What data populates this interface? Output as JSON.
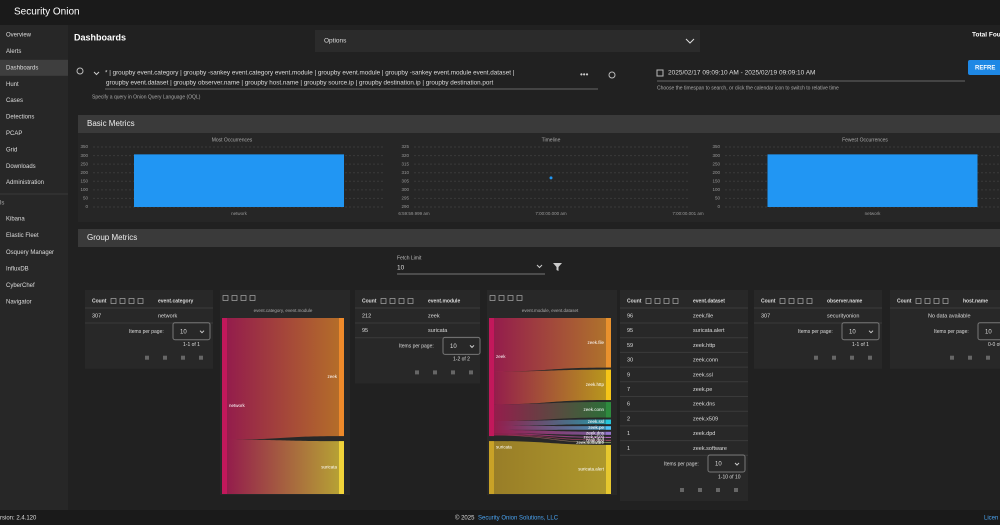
{
  "header": {
    "logo": "Security Onion"
  },
  "nav": {
    "items": [
      "Overview",
      "Alerts",
      "Dashboards",
      "Hunt",
      "Cases",
      "Detections",
      "PCAP",
      "Grid",
      "Downloads",
      "Administration"
    ],
    "section": "ls",
    "tools": [
      "Kibana",
      "Elastic Fleet",
      "Osquery Manager",
      "InfluxDB",
      "CyberChef",
      "Navigator"
    ]
  },
  "page": {
    "title": "Dashboards",
    "options": "Options",
    "total": "Total Fou"
  },
  "query": {
    "lines": [
      "* | groupby event.category | groupby -sankey event.category event.module | groupby event.module | groupby -sankey event.module event.dataset |",
      "groupby event.dataset | groupby observer.name | groupby host.name | groupby source.ip | groupby destination.ip | groupby destination.port"
    ],
    "hint": "Specify a query in Onion Query Language (OQL)"
  },
  "timespan": {
    "range": "2025/02/17 09:09:10 AM - 2025/02/19 09:09:10 AM",
    "hint": "Choose the timespan to search, or click the calendar icon to switch to relative time",
    "button": "REFRE"
  },
  "basic_metrics": {
    "title": "Basic Metrics",
    "charts": [
      {
        "type": "bar",
        "title": "Most Occurrences",
        "categories": [
          "network"
        ],
        "values": [
          307
        ],
        "color": "#2196f3",
        "ylim": [
          0,
          350
        ],
        "yticks": [
          0,
          50,
          100,
          150,
          200,
          250,
          300,
          350
        ],
        "grid": true
      },
      {
        "type": "scatter",
        "title": "Timeline",
        "categories": [
          "6:59:59.999 am",
          "7:00:00.000 am",
          "7:00:00.001 am"
        ],
        "values": [
          null,
          307,
          null
        ],
        "color": "#2196f3",
        "ylim": [
          290,
          325
        ],
        "yticks": [
          290,
          295,
          300,
          305,
          310,
          315,
          320,
          325
        ],
        "grid": true
      },
      {
        "type": "bar",
        "title": "Fewest Occurrences",
        "categories": [
          "network"
        ],
        "values": [
          307
        ],
        "color": "#2196f3",
        "ylim": [
          0,
          350
        ],
        "yticks": [
          0,
          50,
          100,
          150,
          200,
          250,
          300,
          350
        ],
        "grid": true
      }
    ]
  },
  "group_metrics": {
    "title": "Group Metrics",
    "fetch_label": "Fetch Limit",
    "fetch_value": 10,
    "tables": [
      {
        "count_label": "Count",
        "field": "event.category",
        "rows": [
          [
            307,
            "network"
          ]
        ],
        "items_label": "Items per page:",
        "per_page": 10,
        "range": "1-1 of 1"
      },
      {
        "count_label": "Count",
        "field": "event.module",
        "rows": [
          [
            212,
            "zeek"
          ],
          [
            95,
            "suricata"
          ]
        ],
        "items_label": "Items per page:",
        "per_page": 10,
        "range": "1-2 of 2"
      },
      {
        "count_label": "Count",
        "field": "event.dataset",
        "rows": [
          [
            96,
            "zeek.file"
          ],
          [
            95,
            "suricata.alert"
          ],
          [
            59,
            "zeek.http"
          ],
          [
            30,
            "zeek.conn"
          ],
          [
            9,
            "zeek.ssl"
          ],
          [
            7,
            "zeek.pe"
          ],
          [
            6,
            "zeek.dns"
          ],
          [
            2,
            "zeek.x509"
          ],
          [
            1,
            "zeek.dpd"
          ],
          [
            1,
            "zeek.software"
          ]
        ],
        "items_label": "Items per page:",
        "per_page": 10,
        "range": "1-10 of 10"
      },
      {
        "count_label": "Count",
        "field": "observer.name",
        "rows": [
          [
            307,
            "securityonion"
          ]
        ],
        "items_label": "Items per page:",
        "per_page": 10,
        "range": "1-1 of 1"
      },
      {
        "count_label": "Count",
        "field": "host.name",
        "rows": [],
        "empty": "No data available",
        "items_label": "Items per page:",
        "per_page": 10,
        "range": "0-0 of"
      }
    ],
    "sankeys": [
      {
        "title": "event.category, event.module",
        "source_colors": [
          "#c2185b"
        ],
        "target_colors": [
          "#ef8a2a",
          "#f2d43a"
        ]
      },
      {
        "title": "event.module, event.dataset",
        "source_colors": [
          "#c2185b",
          "#c9a227"
        ],
        "target_colors": [
          "#e8912d",
          "#e6c72e",
          "#f5c518",
          "#2e8b3e",
          "#26c6da",
          "#4fc3f7",
          "#9575cd",
          "#ba68c8",
          "#f06292",
          "#aed581"
        ]
      }
    ]
  },
  "footer": {
    "version": "rsion: 2.4.120",
    "copyright": "© 2025",
    "company": "Security Onion Solutions, LLC",
    "license": "Licen"
  }
}
